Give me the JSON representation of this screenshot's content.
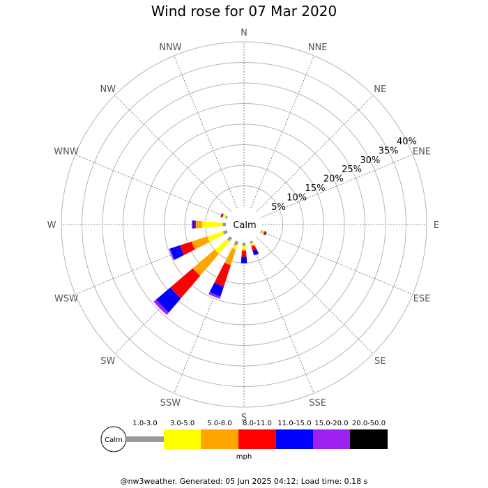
{
  "title": "Wind rose for 07 Mar 2020",
  "footer": "@nw3weather. Generated: 05 Jun 2025 04:12; Load time: 0.18 s",
  "calm_label": "Calm",
  "unit_label": "mph",
  "chart_data": {
    "type": "windrose",
    "title": "Wind rose for 07 Mar 2020",
    "directions": [
      "N",
      "NNE",
      "NE",
      "ENE",
      "E",
      "ESE",
      "SE",
      "SSE",
      "S",
      "SSW",
      "SW",
      "WSW",
      "W",
      "WNW",
      "NW",
      "NNW"
    ],
    "ring_labels": [
      "5%",
      "10%",
      "15%",
      "20%",
      "25%",
      "30%",
      "35%",
      "40%"
    ],
    "rmax_percent": 40,
    "calm_percent": 2,
    "speed_bins": [
      {
        "label": "1.0-3.0",
        "color": "#999999"
      },
      {
        "label": "3.0-5.0",
        "color": "#ffff00"
      },
      {
        "label": "5.0-8.0",
        "color": "#ffa500"
      },
      {
        "label": "8.0-11.0",
        "color": "#ff0000"
      },
      {
        "label": "11.0-15.0",
        "color": "#0000ff"
      },
      {
        "label": "15.0-20.0",
        "color": "#a020f0"
      },
      {
        "label": "20.0-50.0",
        "color": "#000000"
      }
    ],
    "unit": "mph",
    "frequencies": [
      {
        "direction": "ESE",
        "values": [
          0.3,
          0.3,
          0.3,
          0.3,
          0.2,
          0,
          0
        ]
      },
      {
        "direction": "SSE",
        "values": [
          0.5,
          0.5,
          0.3,
          1.0,
          1.2,
          0,
          0
        ]
      },
      {
        "direction": "S",
        "values": [
          0.8,
          0.8,
          0.4,
          1.5,
          1.5,
          0,
          0
        ]
      },
      {
        "direction": "SSW",
        "values": [
          1.0,
          1.0,
          4.0,
          5.5,
          2.5,
          0.6,
          0
        ]
      },
      {
        "direction": "SW",
        "values": [
          1.0,
          4.0,
          7.0,
          7.2,
          4.5,
          0.8,
          0
        ]
      },
      {
        "direction": "WSW",
        "values": [
          1.0,
          4.0,
          4.0,
          3.0,
          2.5,
          0.3,
          0
        ]
      },
      {
        "direction": "W",
        "values": [
          0.8,
          5.0,
          1.5,
          0.3,
          0.5,
          0.2,
          0
        ]
      },
      {
        "direction": "WNW",
        "values": [
          0.4,
          0.6,
          0.2,
          0.2,
          0.2,
          0,
          0
        ]
      }
    ]
  }
}
